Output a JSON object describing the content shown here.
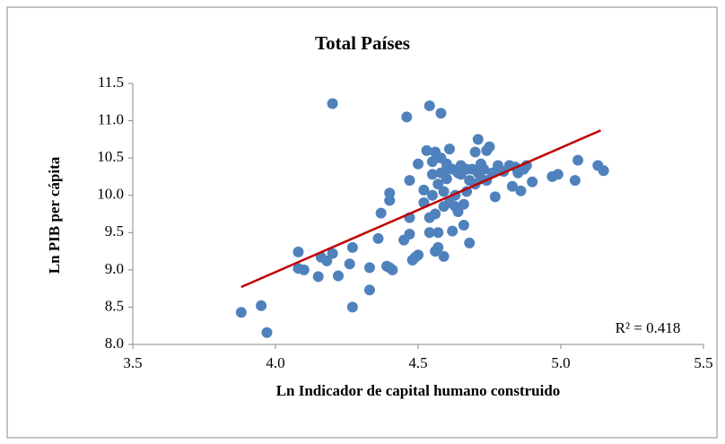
{
  "chart_data": {
    "type": "scatter",
    "title": "Total Países",
    "x_label": "Ln Indicador de capital humano construido",
    "y_label": "Ln PIB per cápita",
    "annotation": "R² = 0.418",
    "color": "#4f81bd",
    "trendline": {
      "color": "#c00000",
      "x": [
        3.88,
        5.14
      ],
      "y": [
        8.77,
        10.87
      ]
    },
    "xlim": [
      3.5,
      5.5
    ],
    "xticks": [
      3.5,
      {
        "value": 4,
        "label": "4.0"
      },
      4.5,
      {
        "value": 5,
        "label": "5.0"
      },
      5.5
    ],
    "ylim": [
      8,
      11.5
    ],
    "yticks": [
      {
        "value": 8,
        "label": "8.0"
      },
      8.5,
      {
        "value": 9,
        "label": "9.0"
      },
      9.5,
      {
        "value": 10,
        "label": "10.0"
      },
      10.5,
      {
        "value": 11,
        "label": "11.0"
      },
      11.5
    ],
    "x": [
      3.88,
      3.95,
      3.97,
      4.08,
      4.08,
      4.1,
      4.15,
      4.16,
      4.18,
      4.2,
      4.2,
      4.22,
      4.26,
      4.27,
      4.27,
      4.33,
      4.33,
      4.36,
      4.37,
      4.39,
      4.4,
      4.4,
      4.4,
      4.41,
      4.45,
      4.46,
      4.47,
      4.47,
      4.47,
      4.48,
      4.49,
      4.5,
      4.5,
      4.52,
      4.52,
      4.53,
      4.54,
      4.54,
      4.54,
      4.55,
      4.55,
      4.55,
      4.56,
      4.56,
      4.56,
      4.57,
      4.57,
      4.57,
      4.58,
      4.58,
      4.58,
      4.59,
      4.59,
      4.59,
      4.6,
      4.6,
      4.6,
      4.61,
      4.61,
      4.62,
      4.62,
      4.63,
      4.63,
      4.64,
      4.64,
      4.65,
      4.65,
      4.66,
      4.66,
      4.67,
      4.67,
      4.68,
      4.68,
      4.69,
      4.7,
      4.7,
      4.71,
      4.71,
      4.72,
      4.72,
      4.73,
      4.74,
      4.74,
      4.75,
      4.76,
      4.77,
      4.78,
      4.78,
      4.8,
      4.82,
      4.83,
      4.84,
      4.85,
      4.86,
      4.87,
      4.88,
      4.9,
      4.97,
      4.99,
      5.05,
      5.06,
      5.13,
      5.15
    ],
    "values": [
      8.43,
      8.52,
      8.16,
      9.24,
      9.02,
      9.0,
      8.91,
      9.17,
      9.12,
      9.22,
      11.23,
      8.92,
      9.08,
      9.3,
      8.5,
      9.03,
      8.73,
      9.42,
      9.76,
      9.05,
      9.03,
      9.93,
      10.03,
      9.0,
      9.4,
      11.05,
      9.48,
      9.7,
      10.2,
      9.13,
      9.17,
      9.2,
      10.42,
      9.9,
      10.07,
      10.6,
      9.5,
      9.7,
      11.2,
      10.0,
      10.28,
      10.45,
      10.58,
      9.75,
      9.25,
      9.3,
      9.5,
      10.15,
      10.3,
      10.5,
      11.1,
      9.18,
      9.85,
      10.05,
      10.22,
      10.35,
      10.42,
      9.9,
      10.62,
      9.52,
      10.35,
      10.0,
      9.85,
      10.3,
      9.78,
      10.4,
      10.28,
      9.88,
      9.6,
      10.05,
      10.35,
      9.36,
      10.2,
      10.35,
      10.58,
      10.15,
      10.75,
      10.3,
      10.42,
      10.22,
      10.35,
      10.6,
      10.2,
      10.65,
      10.3,
      9.98,
      10.4,
      10.35,
      10.32,
      10.4,
      10.12,
      10.38,
      10.3,
      10.06,
      10.35,
      10.4,
      10.18,
      10.25,
      10.28,
      10.2,
      10.47,
      10.4,
      10.33
    ]
  }
}
